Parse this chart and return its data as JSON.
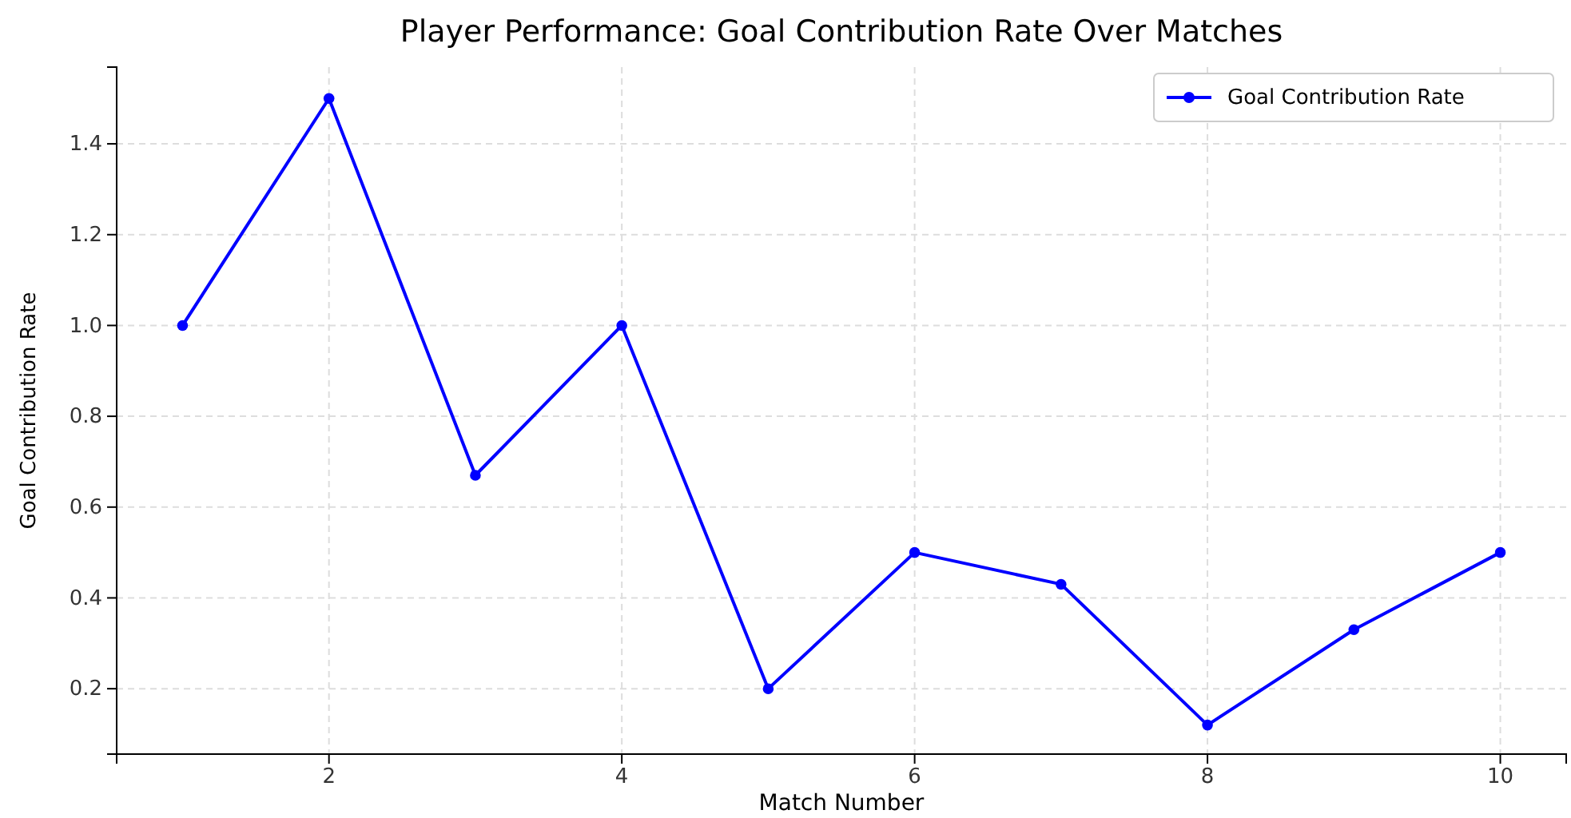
{
  "chart_data": {
    "type": "line",
    "title": "Player Performance: Goal Contribution Rate Over Matches",
    "xlabel": "Match Number",
    "ylabel": "Goal Contribution Rate",
    "x": [
      1,
      2,
      3,
      4,
      5,
      6,
      7,
      8,
      9,
      10
    ],
    "series": [
      {
        "name": "Goal Contribution Rate",
        "color": "#0000ff",
        "values": [
          1.0,
          1.5,
          0.67,
          1.0,
          0.2,
          0.5,
          0.43,
          0.12,
          0.33,
          0.5
        ]
      }
    ],
    "xlim": [
      0.55,
      10.45
    ],
    "ylim": [
      0.056,
      1.569
    ],
    "xticks": [
      2,
      4,
      6,
      8,
      10
    ],
    "yticks": [
      {
        "value": 0.2,
        "label": "0.2"
      },
      {
        "value": 0.4,
        "label": "0.4"
      },
      {
        "value": 0.6,
        "label": "0.6"
      },
      {
        "value": 0.8,
        "label": "0.8"
      },
      {
        "value": 1.0,
        "label": "1.0"
      },
      {
        "value": 1.2,
        "label": "1.2"
      },
      {
        "value": 1.4,
        "label": "1.4"
      }
    ],
    "grid": true,
    "legend": "top right",
    "marker": "circle",
    "line_style": "solid"
  }
}
